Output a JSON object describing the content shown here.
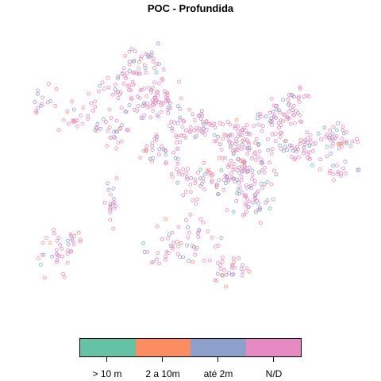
{
  "title": "POC - Profundida",
  "legend": {
    "items": [
      {
        "label": "> 10 m",
        "color": "#66C2A5"
      },
      {
        "label": "2 a 10m",
        "color": "#FC8D62"
      },
      {
        "label": "até 2m",
        "color": "#8DA0CB"
      },
      {
        "label": "N/D",
        "color": "#E78AC3"
      }
    ]
  },
  "map": {
    "marker": "open-circle",
    "category_share": {
      "> 10 m": 0.03,
      "2 a 10m": 0.04,
      "até 2m": 0.18,
      "N/D": 0.75
    }
  }
}
